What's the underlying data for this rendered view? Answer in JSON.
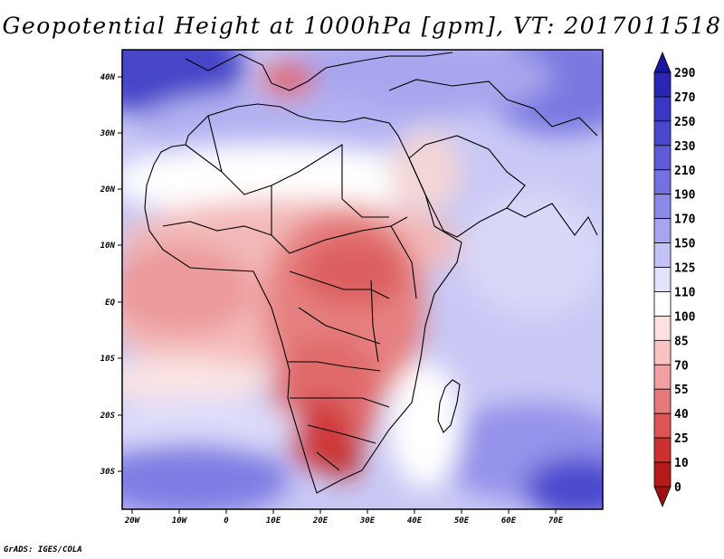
{
  "title": "Geopotential Height at 1000hPa [gpm], VT: 2017011518",
  "footer": "GrADS: IGES/COLA",
  "map": {
    "variable": "Geopotential Height",
    "level": "1000hPa",
    "units": "gpm",
    "valid_time": "2017011518",
    "lon_labels": [
      "20W",
      "10W",
      "0",
      "10E",
      "20E",
      "30E",
      "40E",
      "50E",
      "60E",
      "70E"
    ],
    "lat_labels": [
      "40N",
      "30N",
      "20N",
      "10N",
      "EQ",
      "10S",
      "20S",
      "30S"
    ],
    "lon_values": [
      -20,
      -10,
      0,
      10,
      20,
      30,
      40,
      50,
      60,
      70
    ],
    "lat_values": [
      40,
      30,
      20,
      10,
      0,
      -10,
      -20,
      -30
    ],
    "lon_range": [
      -22,
      80
    ],
    "lat_range": [
      -36,
      44
    ]
  },
  "colorbar": {
    "labels": [
      "290",
      "270",
      "250",
      "230",
      "210",
      "190",
      "170",
      "150",
      "125",
      "110",
      "100",
      "85",
      "70",
      "55",
      "40",
      "25",
      "10",
      "0"
    ],
    "colors": [
      "#1a1699",
      "#2a26b3",
      "#3b37c4",
      "#4b48d0",
      "#5e5bd8",
      "#7471e0",
      "#8c8ae8",
      "#a7a5ef",
      "#c3c2f6",
      "#e3e3fb",
      "#ffffff",
      "#fde0e0",
      "#f9c3c3",
      "#f0a0a0",
      "#e67a7a",
      "#dc5454",
      "#cc3030",
      "#b51a1a",
      "#a00f0f"
    ]
  }
}
